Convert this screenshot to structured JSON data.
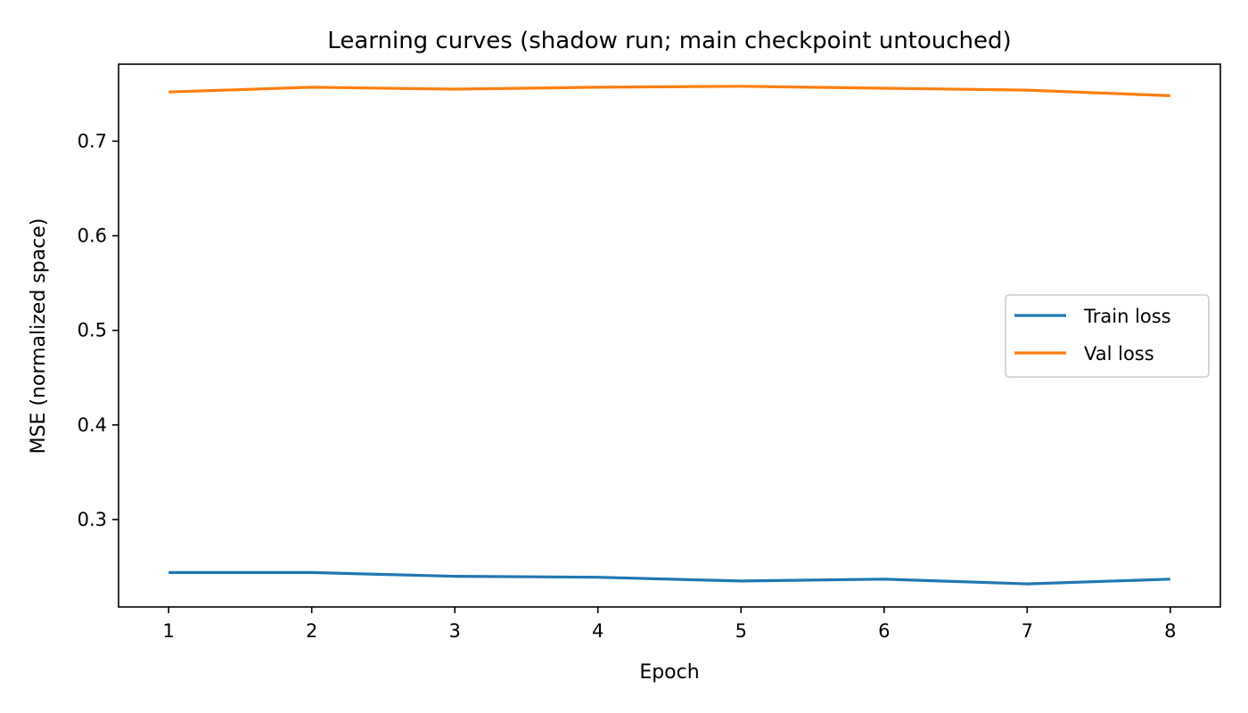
{
  "chart_data": {
    "type": "line",
    "title": "Learning curves (shadow run; main checkpoint untouched)",
    "xlabel": "Epoch",
    "ylabel": "MSE (normalized space)",
    "x": [
      1,
      2,
      3,
      4,
      5,
      6,
      7,
      8
    ],
    "xticks": [
      1,
      2,
      3,
      4,
      5,
      6,
      7,
      8
    ],
    "yticks": [
      0.3,
      0.4,
      0.5,
      0.6,
      0.7
    ],
    "xlim": [
      0.65,
      8.35
    ],
    "ylim": [
      0.2076,
      0.7814
    ],
    "grid": false,
    "legend_position": "center-right",
    "series": [
      {
        "name": "Train loss",
        "color": "#1f77b4",
        "values": [
          0.244,
          0.244,
          0.24,
          0.239,
          0.235,
          0.237,
          0.232,
          0.237
        ]
      },
      {
        "name": "Val loss",
        "color": "#ff7f0e",
        "values": [
          0.752,
          0.757,
          0.755,
          0.757,
          0.758,
          0.756,
          0.754,
          0.748
        ]
      }
    ]
  }
}
